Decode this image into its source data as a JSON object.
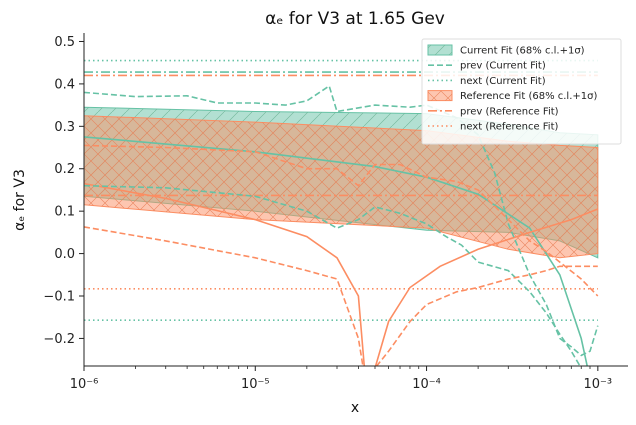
{
  "chart_data": {
    "type": "line",
    "title": "αₑ for V3 at 1.65 Gev",
    "xlabel": "x",
    "ylabel": "αₑ for V3",
    "xscale": "log",
    "xlim": [
      1e-06,
      0.0015
    ],
    "ylim": [
      -0.265,
      0.52
    ],
    "xticks": [
      {
        "value": 1e-06,
        "label": "10⁻⁶"
      },
      {
        "value": 1e-05,
        "label": "10⁻⁵"
      },
      {
        "value": 0.0001,
        "label": "10⁻⁴"
      },
      {
        "value": 0.001,
        "label": "10⁻³"
      }
    ],
    "yticks": [
      -0.2,
      -0.1,
      0.0,
      0.1,
      0.2,
      0.3,
      0.4,
      0.5
    ],
    "ytick_labels": [
      "−0.2",
      "−0.1",
      "0.0",
      "0.1",
      "0.2",
      "0.3",
      "0.4",
      "0.5"
    ],
    "legend_position": "top-right",
    "colors": {
      "current": "#66c2a5",
      "reference": "#fc8d62"
    },
    "legend": [
      {
        "label": "Current Fit (68% c.l.+1σ)",
        "kind": "band",
        "color": "#66c2a5",
        "hatch": "diag"
      },
      {
        "label": "prev (Current Fit)",
        "kind": "line",
        "dash": "dashed",
        "color": "#66c2a5"
      },
      {
        "label": "next (Current Fit)",
        "kind": "line",
        "dash": "dotted",
        "color": "#66c2a5"
      },
      {
        "label": "Reference Fit (68% c.l.+1σ)",
        "kind": "band",
        "color": "#fc8d62",
        "hatch": "cross"
      },
      {
        "label": "prev (Reference Fit)",
        "kind": "line",
        "dash": "dashdot",
        "color": "#fc8d62"
      },
      {
        "label": "next (Reference Fit)",
        "kind": "line",
        "dash": "dotted",
        "color": "#fc8d62"
      }
    ],
    "series": [
      {
        "name": "Current Fit (68% c.l.+1σ)",
        "kind": "band",
        "color": "#66c2a5",
        "x": [
          1e-06,
          1e-05,
          0.0001,
          0.0003,
          0.0006,
          0.001
        ],
        "upper": [
          0.345,
          0.335,
          0.33,
          0.305,
          0.285,
          0.28
        ],
        "lower": [
          0.135,
          0.1,
          0.055,
          0.05,
          0.03,
          -0.01
        ]
      },
      {
        "name": "Reference Fit (68% c.l.+1σ)",
        "kind": "band",
        "color": "#fc8d62",
        "x": [
          1e-06,
          1e-05,
          0.0001,
          0.0003,
          0.0006,
          0.001
        ],
        "upper": [
          0.325,
          0.31,
          0.29,
          0.265,
          0.255,
          0.25
        ],
        "lower": [
          0.115,
          0.08,
          0.06,
          0.01,
          -0.01,
          0.0
        ]
      },
      {
        "name": "Current Fit (central)",
        "kind": "line",
        "dash": "solid",
        "color": "#66c2a5",
        "x": [
          1e-06,
          1e-05,
          5e-05,
          0.0001,
          0.0002,
          0.0004,
          0.0006,
          0.0008,
          0.001
        ],
        "y": [
          0.275,
          0.24,
          0.205,
          0.18,
          0.14,
          0.06,
          -0.05,
          -0.2,
          -0.38
        ]
      },
      {
        "name": "Reference Fit (central)",
        "kind": "line",
        "dash": "solid",
        "color": "#fc8d62",
        "x": [
          1e-06,
          3e-06,
          1e-05,
          2e-05,
          3e-05,
          4e-05,
          4.4e-05,
          5e-05,
          6e-05,
          8e-05,
          0.00012,
          0.0002,
          0.0004,
          0.0007,
          0.001
        ],
        "y": [
          0.165,
          0.13,
          0.08,
          0.04,
          -0.01,
          -0.1,
          -0.3,
          -0.27,
          -0.16,
          -0.08,
          -0.03,
          0.01,
          0.05,
          0.08,
          0.105
        ]
      },
      {
        "name": "Current Fit (upper replica)",
        "kind": "line",
        "dash": "dashed",
        "color": "#66c2a5",
        "x": [
          1e-06,
          2e-06,
          4e-06,
          6e-06,
          1e-05,
          1.5e-05,
          2e-05,
          2.7e-05,
          3e-05,
          5e-05,
          8e-05,
          0.0001,
          0.00015,
          0.0002,
          0.00025,
          0.0003,
          0.0004,
          0.0005,
          0.0006,
          0.0007,
          0.0008,
          0.0009,
          0.001
        ],
        "y": [
          0.38,
          0.37,
          0.372,
          0.355,
          0.355,
          0.35,
          0.36,
          0.395,
          0.335,
          0.35,
          0.345,
          0.35,
          0.32,
          0.28,
          0.19,
          0.07,
          -0.05,
          -0.12,
          -0.2,
          -0.22,
          -0.24,
          -0.23,
          -0.17
        ]
      },
      {
        "name": "Current Fit (lower replica)",
        "kind": "line",
        "dash": "dashed",
        "color": "#66c2a5",
        "x": [
          1e-06,
          3e-06,
          1e-05,
          2e-05,
          3e-05,
          4e-05,
          5e-05,
          7e-05,
          0.0001,
          0.00013,
          0.00016,
          0.0002,
          0.0003,
          0.0004,
          0.0005,
          0.0006,
          0.0007,
          0.0008,
          0.0009,
          0.001
        ],
        "y": [
          0.16,
          0.155,
          0.135,
          0.1,
          0.06,
          0.08,
          0.11,
          0.095,
          0.07,
          0.04,
          0.02,
          -0.02,
          -0.04,
          -0.09,
          -0.14,
          -0.19,
          -0.23,
          -0.27,
          -0.3,
          -0.33
        ]
      },
      {
        "name": "Reference Fit (upper replica)",
        "kind": "line",
        "dash": "dashed",
        "color": "#fc8d62",
        "x": [
          1e-06,
          3e-06,
          1e-05,
          2e-05,
          3e-05,
          4e-05,
          5e-05,
          7e-05,
          0.0001,
          0.00015,
          0.0002,
          0.0003,
          0.0004,
          0.0005,
          0.0006,
          0.0008,
          0.001
        ],
        "y": [
          0.255,
          0.25,
          0.24,
          0.2,
          0.2,
          0.16,
          0.21,
          0.21,
          0.18,
          0.17,
          0.15,
          0.08,
          0.03,
          0.005,
          -0.02,
          -0.06,
          -0.1
        ]
      },
      {
        "name": "Reference Fit (lower replica)",
        "kind": "line",
        "dash": "dashed",
        "color": "#fc8d62",
        "x": [
          1e-06,
          3e-06,
          1e-05,
          2e-05,
          3e-05,
          4e-05,
          4.6e-05,
          5e-05,
          6e-05,
          8e-05,
          0.0001,
          0.00015,
          0.0002,
          0.0003,
          0.0004,
          0.0005,
          0.0006,
          0.0008,
          0.001
        ],
        "y": [
          0.063,
          0.03,
          -0.01,
          -0.04,
          -0.06,
          -0.2,
          -0.35,
          -0.27,
          -0.23,
          -0.16,
          -0.12,
          -0.09,
          -0.08,
          -0.06,
          -0.05,
          -0.04,
          -0.03,
          -0.03,
          -0.03
        ]
      },
      {
        "name": "prev (Current Fit)",
        "kind": "hline",
        "dash": "dashdot",
        "color": "#66c2a5",
        "y": 0.428
      },
      {
        "name": "next (Current Fit)",
        "kind": "hline",
        "dash": "dotted",
        "color": "#66c2a5",
        "y": 0.455
      },
      {
        "name": "next (Current Fit) lower",
        "kind": "hline",
        "dash": "dotted",
        "color": "#66c2a5",
        "y": -0.157
      },
      {
        "name": "prev (Reference Fit)",
        "kind": "hline",
        "dash": "dashdot",
        "color": "#fc8d62",
        "y": 0.42
      },
      {
        "name": "prev (Reference Fit) mid",
        "kind": "hline",
        "dash": "dashdot",
        "color": "#fc8d62",
        "y": 0.137
      },
      {
        "name": "next (Reference Fit)",
        "kind": "hline",
        "dash": "dotted",
        "color": "#fc8d62",
        "y": -0.083
      }
    ]
  }
}
